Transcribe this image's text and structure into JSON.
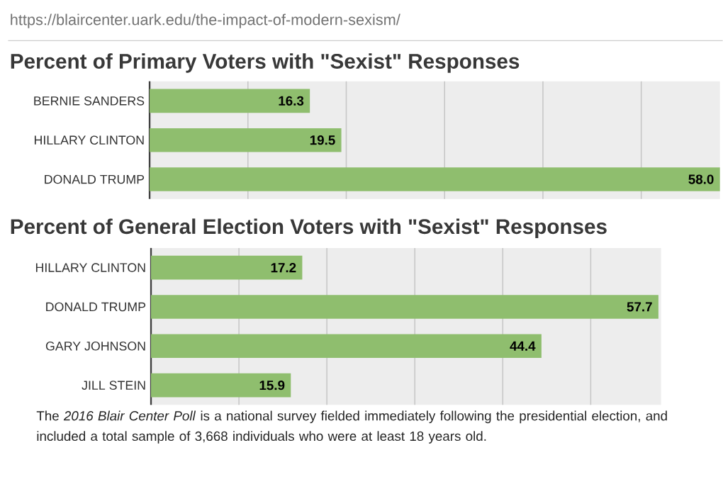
{
  "chart_data": [
    {
      "type": "bar",
      "orientation": "horizontal",
      "title": "Percent of Primary Voters with \"Sexist\" Responses",
      "categories": [
        "BERNIE SANDERS",
        "HILLARY CLINTON",
        "DONALD TRUMP"
      ],
      "values": [
        16.3,
        19.5,
        58.0
      ],
      "value_labels": [
        "16.3",
        "19.5",
        "58.0"
      ],
      "color": "#8fbe6e",
      "xlim": [
        0,
        58
      ],
      "xticks": [
        {
          "value": 10,
          "label": null
        },
        {
          "value": 20,
          "label": null
        },
        {
          "value": 30,
          "label": null
        },
        {
          "value": 40,
          "label": null
        },
        {
          "value": 50,
          "label": null
        }
      ],
      "grid": "x",
      "tick_labels": "y",
      "annotations": [
        "https://blaircenter.uark.edu/the-impact-of-modern-sexism/"
      ]
    },
    {
      "type": "bar",
      "orientation": "horizontal",
      "title": "Percent of General Election Voters with \"Sexist\" Responses",
      "categories": [
        "HILLARY CLINTON",
        "DONALD TRUMP",
        "GARY JOHNSON",
        "JILL STEIN"
      ],
      "values": [
        17.2,
        57.7,
        44.4,
        15.9
      ],
      "value_labels": [
        "17.2",
        "57.7",
        "44.4",
        "15.9"
      ],
      "color": "#8fbe6e",
      "xlim": [
        0,
        58
      ],
      "xticks": [
        {
          "value": 10,
          "label": null
        },
        {
          "value": 20,
          "label": null
        },
        {
          "value": 30,
          "label": null
        },
        {
          "value": 40,
          "label": null
        },
        {
          "value": 50,
          "label": null
        }
      ],
      "grid": "x",
      "tick_labels": "y",
      "annotations": [
        "The *2016 Blair Center Poll* is a national survey fielded immediately following the presidential election, and included a total sample of 3,668 individuals who were at least 18 years old."
      ]
    }
  ]
}
